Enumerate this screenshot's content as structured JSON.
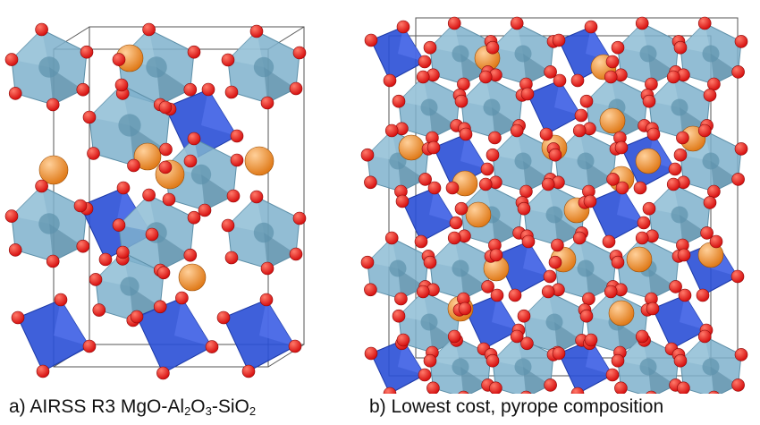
{
  "panels": [
    {
      "id": "a",
      "caption": {
        "prefix": "a) AIRSS R3 MgO-Al",
        "sub1": "2",
        "mid1": "O",
        "sub2": "3",
        "mid2": "-SiO",
        "sub3": "2"
      }
    },
    {
      "id": "b",
      "caption": {
        "text": "b) Lowest cost, pyrope composition"
      }
    }
  ],
  "colors": {
    "oxygen": "#d60f0f",
    "magnesium": "#e07b1a",
    "octahedra": "#7fb2cc",
    "tetrahedra": "#2a4fd6",
    "cell_edges": "#555555"
  }
}
